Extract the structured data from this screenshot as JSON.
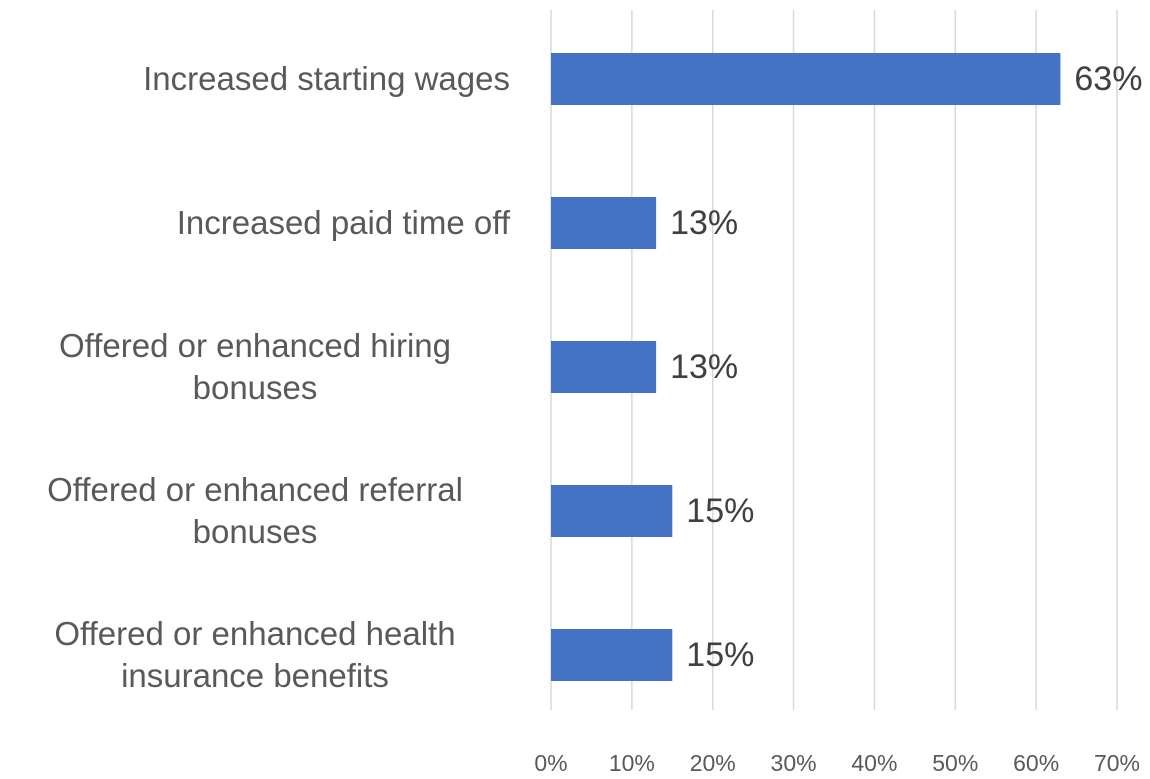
{
  "chart_data": {
    "type": "bar",
    "orientation": "horizontal",
    "categories": [
      "Increased starting wages",
      "Increased paid time off",
      "Offered or enhanced hiring bonuses",
      "Offered or enhanced referral bonuses",
      "Offered or enhanced health insurance benefits"
    ],
    "values": [
      63,
      13,
      13,
      15,
      15
    ],
    "value_labels": [
      "63%",
      "13%",
      "13%",
      "15%",
      "15%"
    ],
    "color": "#4472c4",
    "xlim": [
      0,
      70
    ],
    "xticks": [
      {
        "value": 0,
        "label": "0%"
      },
      {
        "value": 10,
        "label": "10%"
      },
      {
        "value": 20,
        "label": "20%"
      },
      {
        "value": 30,
        "label": "30%"
      },
      {
        "value": 40,
        "label": "40%"
      },
      {
        "value": 50,
        "label": "50%"
      },
      {
        "value": 60,
        "label": "60%"
      },
      {
        "value": 70,
        "label": "70%"
      }
    ],
    "grid": true
  }
}
